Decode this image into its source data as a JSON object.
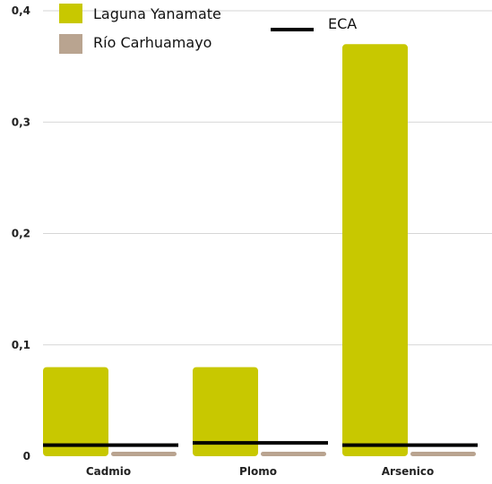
{
  "chart_data": {
    "type": "bar",
    "categories": [
      "Cadmio",
      "Plomo",
      "Arsenico"
    ],
    "series": [
      {
        "name": "Laguna Yanamate",
        "values": [
          0.08,
          0.08,
          0.37
        ],
        "color": "#c8c800"
      },
      {
        "name": "Río Carhuamayo",
        "values": [
          0.004,
          0.004,
          0.004
        ],
        "color": "#b9a490"
      }
    ],
    "reference": {
      "name": "ECA",
      "values": [
        0.01,
        0.012,
        0.01
      ],
      "color": "#000000"
    },
    "ylim": [
      0,
      0.4
    ],
    "y_ticks": [
      0,
      0.1,
      0.2,
      0.3,
      0.4
    ],
    "y_tick_labels": [
      "0",
      "0,1",
      "0,2",
      "0,3",
      "0,4"
    ],
    "grid": true,
    "legend_placement": "top"
  }
}
